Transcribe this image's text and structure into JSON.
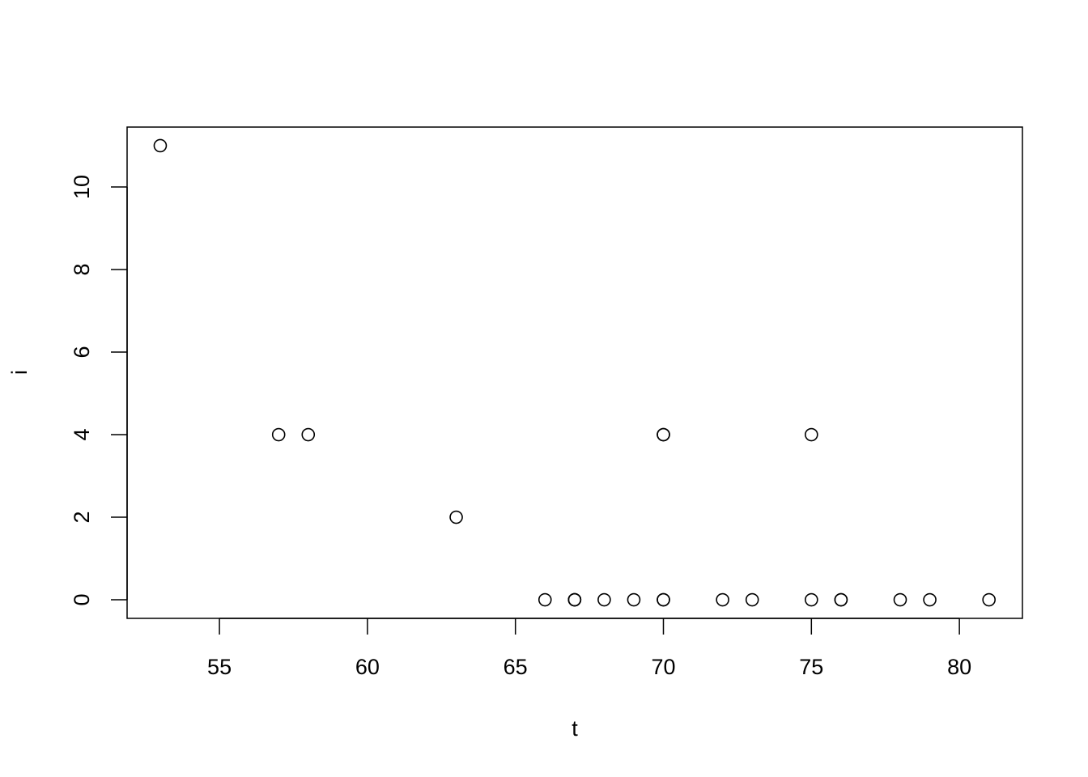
{
  "chart_data": {
    "type": "scatter",
    "title": "",
    "xlabel": "t",
    "ylabel": "i",
    "xlim": [
      51.88,
      82.13
    ],
    "ylim": [
      -0.45,
      11.45
    ],
    "xticks": [
      55,
      60,
      65,
      70,
      75,
      80
    ],
    "yticks": [
      0,
      2,
      4,
      6,
      8,
      10
    ],
    "grid": false,
    "marker": "open-circle",
    "color": "#000000",
    "x": [
      53,
      57,
      58,
      63,
      66,
      67,
      67,
      67,
      68,
      69,
      70,
      70,
      70,
      70,
      72,
      73,
      75,
      75,
      76,
      76,
      78,
      79,
      81
    ],
    "y": [
      11,
      4,
      4,
      2,
      0,
      0,
      0,
      0,
      0,
      0,
      4,
      0,
      4,
      0,
      0,
      0,
      0,
      4,
      0,
      0,
      0,
      0,
      0
    ]
  }
}
